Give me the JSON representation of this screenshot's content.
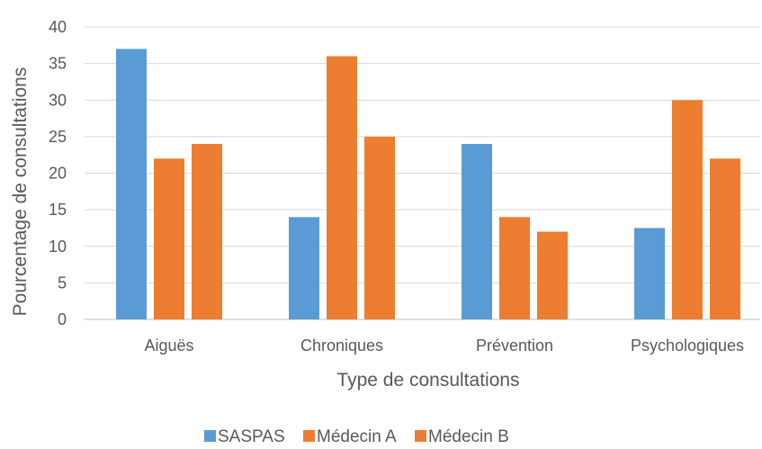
{
  "chart_data": {
    "type": "bar",
    "categories": [
      "Aiguës",
      "Chroniques",
      "Prévention",
      "Psychologiques"
    ],
    "series": [
      {
        "name": "SASPAS",
        "color": "#5b9bd5",
        "values": [
          37,
          14,
          24,
          12.5
        ]
      },
      {
        "name": "Médecin A",
        "color": "#ed7d31",
        "values": [
          22,
          36,
          14,
          30
        ]
      },
      {
        "name": "Médecin B",
        "color": "#ed7d31",
        "values": [
          24,
          25,
          12,
          22
        ]
      }
    ],
    "title": "",
    "xlabel": "Type de consultations",
    "ylabel": "Pourcentage de consultations",
    "ylim": [
      0,
      40
    ],
    "yticks": [
      0,
      5,
      10,
      15,
      20,
      25,
      30,
      35,
      40
    ],
    "grid": true,
    "legend_position": "bottom"
  }
}
